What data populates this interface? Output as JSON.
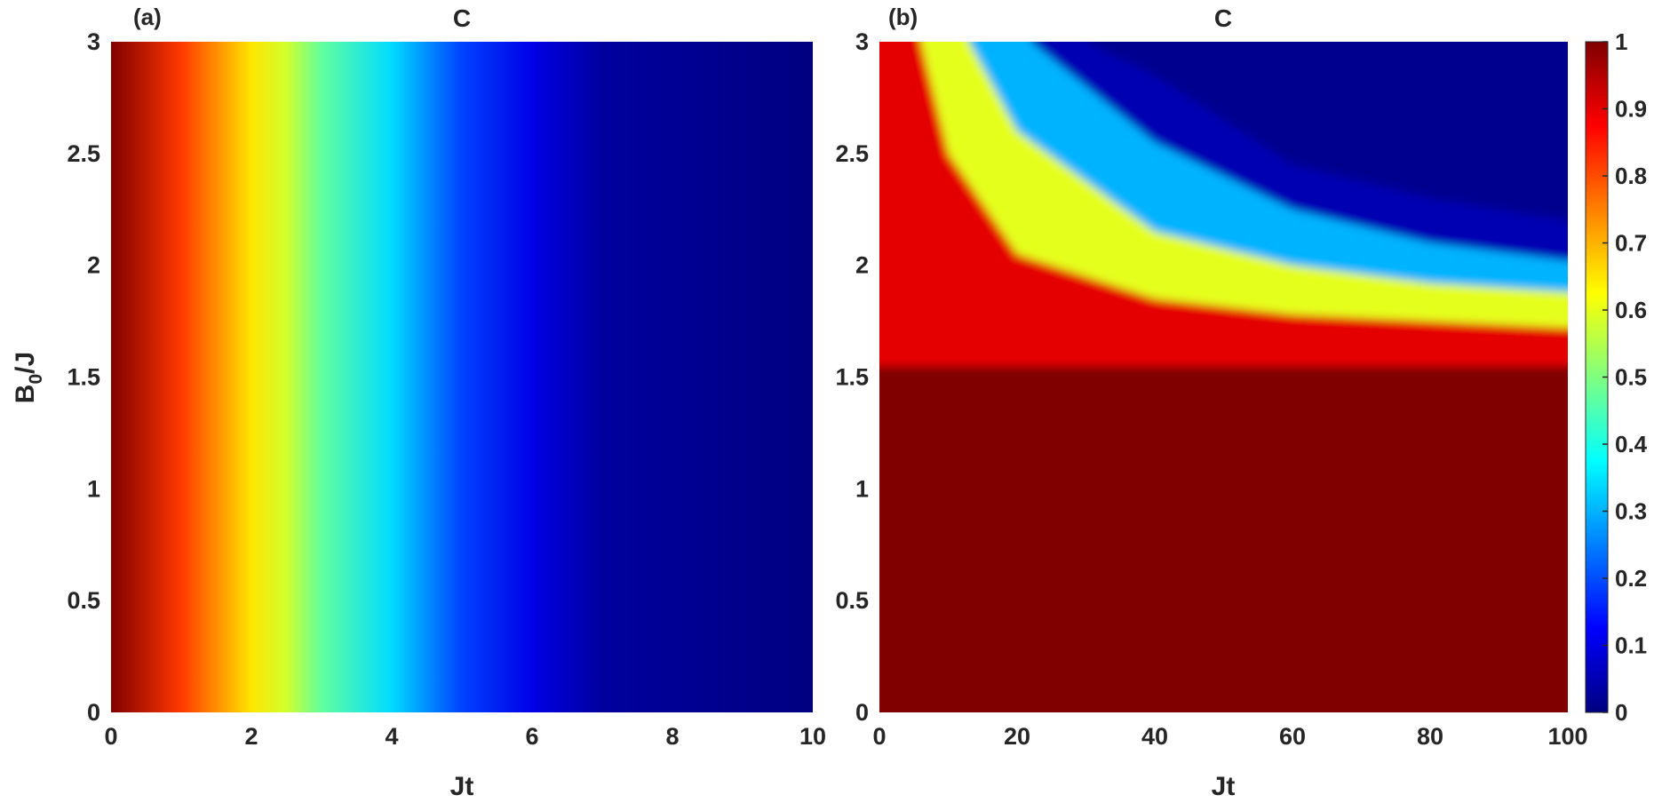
{
  "figure": {
    "colormap": "jet",
    "colorbar": {
      "range": [
        0,
        1
      ],
      "ticks": [
        "0",
        "0.1",
        "0.2",
        "0.3",
        "0.4",
        "0.5",
        "0.6",
        "0.7",
        "0.8",
        "0.9",
        "1"
      ]
    }
  },
  "chart_data": [
    {
      "type": "heatmap",
      "panel_label": "(a)",
      "title": "C",
      "xlabel": "Jt",
      "ylabel_base": "B",
      "ylabel_sub": "0",
      "ylabel_rest": "/J",
      "xlim": [
        0,
        10
      ],
      "ylim": [
        0,
        3
      ],
      "xticks": [
        "0",
        "2",
        "4",
        "6",
        "8",
        "10"
      ],
      "yticks": [
        "0",
        "0.5",
        "1",
        "1.5",
        "2",
        "2.5",
        "3"
      ],
      "profile": "C is independent of B0/J; it decays with Jt",
      "c_vs_jt": [
        {
          "jt": 0,
          "c": 1.0
        },
        {
          "jt": 1,
          "c": 0.82
        },
        {
          "jt": 2,
          "c": 0.65
        },
        {
          "jt": 2.5,
          "c": 0.58
        },
        {
          "jt": 3,
          "c": 0.47
        },
        {
          "jt": 4,
          "c": 0.34
        },
        {
          "jt": 5,
          "c": 0.19
        },
        {
          "jt": 6,
          "c": 0.1
        },
        {
          "jt": 7,
          "c": 0.03
        },
        {
          "jt": 10,
          "c": 0.0
        }
      ]
    },
    {
      "type": "heatmap",
      "panel_label": "(b)",
      "title": "C",
      "xlabel": "Jt",
      "xlim": [
        0,
        100
      ],
      "ylim": [
        0,
        3
      ],
      "xticks": [
        "0",
        "20",
        "40",
        "60",
        "80",
        "100"
      ],
      "yticks": [
        "0",
        "0.5",
        "1",
        "1.5",
        "2",
        "2.5",
        "3"
      ],
      "profile": "C ≈ 1 for B0/J below about 1.55; above it C falls off along curved contours",
      "contours": [
        {
          "c": 0.9,
          "points": [
            [
              6,
              3.0
            ],
            [
              10,
              2.5
            ],
            [
              20,
              2.05
            ],
            [
              40,
              1.85
            ],
            [
              60,
              1.78
            ],
            [
              100,
              1.72
            ]
          ]
        },
        {
          "c": 0.6,
          "points": [
            [
              13,
              3.0
            ],
            [
              20,
              2.6
            ],
            [
              40,
              2.15
            ],
            [
              60,
              2.0
            ],
            [
              80,
              1.92
            ],
            [
              100,
              1.88
            ]
          ]
        },
        {
          "c": 0.3,
          "points": [
            [
              22,
              3.0
            ],
            [
              30,
              2.8
            ],
            [
              40,
              2.55
            ],
            [
              60,
              2.25
            ],
            [
              80,
              2.1
            ],
            [
              100,
              2.02
            ]
          ]
        },
        {
          "c": 0.05,
          "points": [
            [
              30,
              3.0
            ],
            [
              40,
              2.85
            ],
            [
              60,
              2.45
            ],
            [
              80,
              2.3
            ],
            [
              100,
              2.2
            ]
          ]
        }
      ],
      "plateau_boundary_b0_over_j": 1.55
    }
  ]
}
